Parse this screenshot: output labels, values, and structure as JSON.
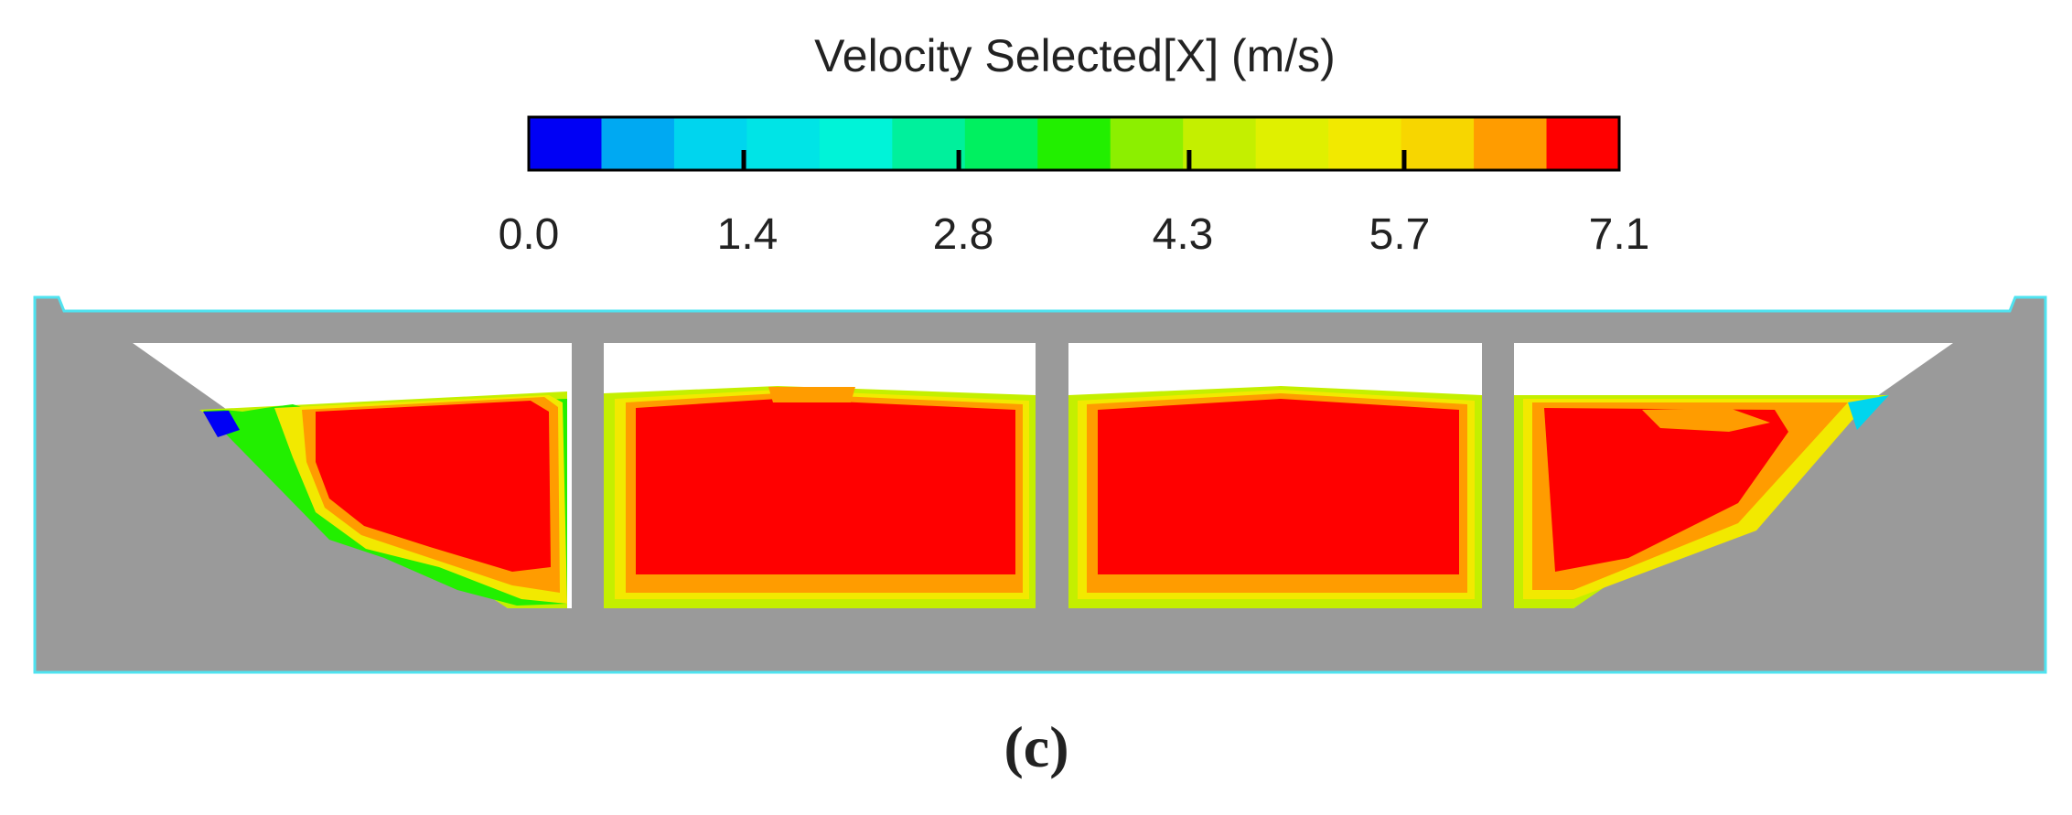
{
  "legend": {
    "title": "Velocity Selected[X] (m/s)",
    "tick_labels": [
      "0.0",
      "1.4",
      "2.8",
      "4.3",
      "5.7",
      "7.1"
    ],
    "range": [
      0.0,
      7.1
    ],
    "bands": [
      "#0000f5",
      "#00a9f2",
      "#00d5ee",
      "#00e4e6",
      "#00f3d8",
      "#00f09c",
      "#00f060",
      "#22ef00",
      "#8cef00",
      "#c4ef00",
      "#e0f000",
      "#f2e900",
      "#f7d600",
      "#ff9c00",
      "#ff0000"
    ]
  },
  "caption": "(c)",
  "colors": {
    "structure": "#9a9a9a",
    "outline": "#4fe3f0",
    "core": "#ff0000",
    "orange": "#ff9c00",
    "yellow": "#f2e900",
    "yellowgreen": "#c4ef00",
    "green": "#22ef00",
    "cyan": "#00d5ee",
    "blue": "#0000f5"
  }
}
